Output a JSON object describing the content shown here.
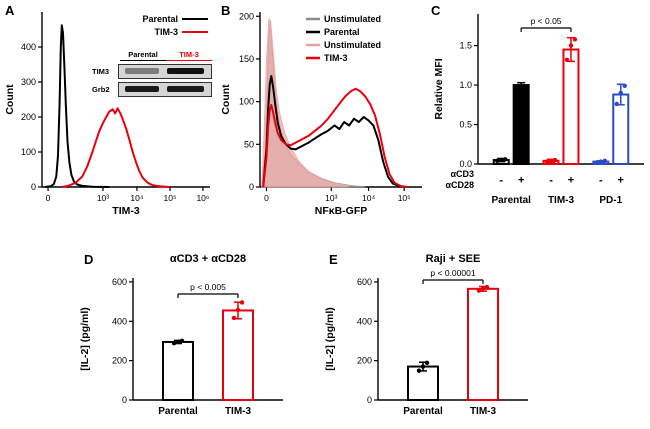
{
  "figure": {
    "colors": {
      "black": "#000000",
      "red": "#e8000d",
      "blue": "#2b4bc7",
      "gray": "#8c8c8c",
      "pink": "#f2a09e"
    }
  },
  "chart_data": [
    {
      "id": "A",
      "panel_label": "A",
      "type": "line",
      "xlabel": "TIM-3",
      "ylabel": "Count",
      "ylim": [
        0,
        500
      ],
      "yticks": [
        {
          "v": 0,
          "t": "0"
        },
        {
          "v": 100,
          "t": "100"
        },
        {
          "v": 200,
          "t": "200"
        },
        {
          "v": 300,
          "t": "300"
        },
        {
          "v": 400,
          "t": "400"
        }
      ],
      "xticks": [
        {
          "label": "0",
          "pos": 0.036
        },
        {
          "label": "10³",
          "pos": 0.363
        },
        {
          "label": "10⁴",
          "pos": 0.565
        },
        {
          "label": "10⁵",
          "pos": 0.762
        },
        {
          "label": "10⁶",
          "pos": 0.958
        }
      ],
      "legend": [
        {
          "label": "Parental",
          "color": "#000000"
        },
        {
          "label": "TIM-3",
          "color": "#e8000d"
        }
      ],
      "inset": {
        "columns": [
          {
            "label": "Parental",
            "color": "#000000"
          },
          {
            "label": "TIM-3",
            "color": "#e8000d"
          }
        ],
        "rows": [
          "TIM3",
          "Grb2"
        ]
      },
      "series": [
        {
          "name": "Parental",
          "color": "#000000",
          "fill": false,
          "points": [
            [
              0.02,
              0
            ],
            [
              0.05,
              2
            ],
            [
              0.07,
              8
            ],
            [
              0.085,
              30
            ],
            [
              0.095,
              90
            ],
            [
              0.105,
              240
            ],
            [
              0.112,
              400
            ],
            [
              0.118,
              462
            ],
            [
              0.125,
              440
            ],
            [
              0.133,
              350
            ],
            [
              0.142,
              230
            ],
            [
              0.152,
              130
            ],
            [
              0.163,
              70
            ],
            [
              0.175,
              35
            ],
            [
              0.19,
              16
            ],
            [
              0.21,
              7
            ],
            [
              0.24,
              3
            ],
            [
              0.3,
              1
            ],
            [
              0.4,
              0
            ]
          ]
        },
        {
          "name": "TIM-3",
          "color": "#e8000d",
          "fill": false,
          "points": [
            [
              0.12,
              0
            ],
            [
              0.16,
              4
            ],
            [
              0.2,
              12
            ],
            [
              0.24,
              30
            ],
            [
              0.27,
              60
            ],
            [
              0.3,
              100
            ],
            [
              0.32,
              130
            ],
            [
              0.34,
              158
            ],
            [
              0.36,
              180
            ],
            [
              0.38,
              198
            ],
            [
              0.4,
              215
            ],
            [
              0.42,
              222
            ],
            [
              0.435,
              210
            ],
            [
              0.45,
              225
            ],
            [
              0.465,
              212
            ],
            [
              0.48,
              195
            ],
            [
              0.5,
              168
            ],
            [
              0.52,
              135
            ],
            [
              0.54,
              100
            ],
            [
              0.56,
              70
            ],
            [
              0.58,
              45
            ],
            [
              0.6,
              26
            ],
            [
              0.63,
              12
            ],
            [
              0.66,
              5
            ],
            [
              0.7,
              2
            ],
            [
              0.76,
              0
            ]
          ]
        }
      ]
    },
    {
      "id": "B",
      "panel_label": "B",
      "type": "line",
      "xlabel": "NFκB-GFP",
      "ylabel": "Count",
      "ylim": [
        0,
        205
      ],
      "yticks": [
        {
          "v": 0,
          "t": "0"
        },
        {
          "v": 50,
          "t": "50"
        },
        {
          "v": 100,
          "t": "100"
        },
        {
          "v": 150,
          "t": "150"
        },
        {
          "v": 200,
          "t": "200"
        }
      ],
      "xticks": [
        {
          "label": "0",
          "pos": 0.04
        },
        {
          "label": "10³",
          "pos": 0.44
        },
        {
          "label": "10⁴",
          "pos": 0.67
        },
        {
          "label": "10⁵",
          "pos": 0.89
        }
      ],
      "legend": [
        {
          "label": "Unstimulated",
          "color": "#8c8c8c"
        },
        {
          "label": "Parental",
          "color": "#000000"
        },
        {
          "label": "Unstimulated",
          "color": "#f2a09e"
        },
        {
          "label": "TIM-3",
          "color": "#e8000d"
        }
      ],
      "series": [
        {
          "name": "Unstimulated-parental",
          "color": "#999999",
          "fill": true,
          "opacity": 0.5,
          "points": [
            [
              0.01,
              0
            ],
            [
              0.03,
              40
            ],
            [
              0.045,
              120
            ],
            [
              0.055,
              180
            ],
            [
              0.065,
              195
            ],
            [
              0.075,
              165
            ],
            [
              0.09,
              120
            ],
            [
              0.11,
              85
            ],
            [
              0.13,
              65
            ],
            [
              0.16,
              48
            ],
            [
              0.2,
              36
            ],
            [
              0.25,
              26
            ],
            [
              0.31,
              17
            ],
            [
              0.38,
              10
            ],
            [
              0.46,
              5
            ],
            [
              0.55,
              2
            ],
            [
              0.65,
              0
            ]
          ]
        },
        {
          "name": "Unstimulated-tim3",
          "color": "#f2a09e",
          "fill": true,
          "opacity": 0.65,
          "points": [
            [
              0.01,
              0
            ],
            [
              0.025,
              60
            ],
            [
              0.04,
              150
            ],
            [
              0.055,
              198
            ],
            [
              0.07,
              185
            ],
            [
              0.085,
              150
            ],
            [
              0.1,
              115
            ],
            [
              0.12,
              88
            ],
            [
              0.15,
              65
            ],
            [
              0.19,
              46
            ],
            [
              0.24,
              30
            ],
            [
              0.3,
              18
            ],
            [
              0.38,
              9
            ],
            [
              0.47,
              3
            ],
            [
              0.55,
              0
            ]
          ]
        },
        {
          "name": "Parental",
          "color": "#000000",
          "fill": false,
          "points": [
            [
              0.02,
              0
            ],
            [
              0.04,
              45
            ],
            [
              0.05,
              90
            ],
            [
              0.06,
              120
            ],
            [
              0.07,
              130
            ],
            [
              0.08,
              118
            ],
            [
              0.095,
              95
            ],
            [
              0.11,
              75
            ],
            [
              0.13,
              60
            ],
            [
              0.16,
              50
            ],
            [
              0.19,
              45
            ],
            [
              0.22,
              44
            ],
            [
              0.26,
              48
            ],
            [
              0.3,
              52
            ],
            [
              0.34,
              57
            ],
            [
              0.38,
              62
            ],
            [
              0.42,
              66
            ],
            [
              0.46,
              72
            ],
            [
              0.49,
              68
            ],
            [
              0.52,
              76
            ],
            [
              0.55,
              72
            ],
            [
              0.58,
              80
            ],
            [
              0.61,
              76
            ],
            [
              0.64,
              82
            ],
            [
              0.67,
              78
            ],
            [
              0.7,
              72
            ],
            [
              0.73,
              55
            ],
            [
              0.76,
              30
            ],
            [
              0.79,
              12
            ],
            [
              0.82,
              4
            ],
            [
              0.86,
              1
            ],
            [
              0.9,
              0
            ]
          ]
        },
        {
          "name": "TIM-3",
          "color": "#e8000d",
          "fill": false,
          "points": [
            [
              0.02,
              0
            ],
            [
              0.04,
              35
            ],
            [
              0.05,
              70
            ],
            [
              0.06,
              90
            ],
            [
              0.07,
              96
            ],
            [
              0.08,
              88
            ],
            [
              0.095,
              74
            ],
            [
              0.11,
              63
            ],
            [
              0.13,
              55
            ],
            [
              0.16,
              50
            ],
            [
              0.19,
              49
            ],
            [
              0.22,
              52
            ],
            [
              0.26,
              56
            ],
            [
              0.3,
              60
            ],
            [
              0.34,
              66
            ],
            [
              0.38,
              72
            ],
            [
              0.42,
              80
            ],
            [
              0.46,
              90
            ],
            [
              0.5,
              100
            ],
            [
              0.53,
              107
            ],
            [
              0.56,
              112
            ],
            [
              0.59,
              115
            ],
            [
              0.62,
              112
            ],
            [
              0.65,
              106
            ],
            [
              0.68,
              97
            ],
            [
              0.71,
              84
            ],
            [
              0.74,
              62
            ],
            [
              0.77,
              35
            ],
            [
              0.8,
              15
            ],
            [
              0.83,
              5
            ],
            [
              0.87,
              1
            ],
            [
              0.91,
              0
            ]
          ]
        }
      ]
    },
    {
      "id": "C",
      "panel_label": "C",
      "type": "bar",
      "ylabel": "Relative MFI",
      "ylim": [
        0,
        1.9
      ],
      "yticks": [
        {
          "v": 0,
          "t": "0.0"
        },
        {
          "v": 0.5,
          "t": "0.5"
        },
        {
          "v": 1.0,
          "t": "1.0"
        },
        {
          "v": 1.5,
          "t": "1.5"
        }
      ],
      "significance": {
        "label": "p < 0.05",
        "from": 1,
        "to": 3,
        "y": 26
      },
      "bars": [
        {
          "pos": 0.14,
          "value": 0.05,
          "err": 0.02,
          "color": "#000000",
          "solid": false,
          "points": [
            0.04,
            0.05,
            0.06
          ]
        },
        {
          "pos": 0.26,
          "value": 1.0,
          "err": 0.03,
          "color": "#000000",
          "solid": true,
          "points": []
        },
        {
          "pos": 0.44,
          "value": 0.04,
          "err": 0.02,
          "color": "#e8000d",
          "solid": false,
          "points": [
            0.03,
            0.04,
            0.05
          ]
        },
        {
          "pos": 0.56,
          "value": 1.45,
          "err": 0.15,
          "color": "#e8000d",
          "solid": false,
          "points": [
            1.32,
            1.5,
            1.58
          ]
        },
        {
          "pos": 0.74,
          "value": 0.03,
          "err": 0.01,
          "color": "#2b4bc7",
          "solid": false,
          "points": [
            0.02,
            0.03,
            0.04
          ]
        },
        {
          "pos": 0.86,
          "value": 0.88,
          "err": 0.13,
          "color": "#2b4bc7",
          "solid": false,
          "points": [
            0.76,
            0.9,
            0.99
          ]
        }
      ],
      "stim": {
        "labels": [
          "αCD3",
          "αCD28"
        ],
        "signs": [
          "-",
          "+",
          "-",
          "+",
          "-",
          "+"
        ]
      },
      "groups": [
        {
          "label": "Parental",
          "color": "#000000"
        },
        {
          "label": "TIM-3",
          "color": "#e8000d"
        },
        {
          "label": "PD-1",
          "color": "#2b4bc7"
        }
      ]
    },
    {
      "id": "D",
      "panel_label": "D",
      "type": "bar",
      "title": "αCD3 + αCD28",
      "ylabel": "[IL-2] (pg/ml)",
      "ylim": [
        0,
        620
      ],
      "yticks": [
        {
          "v": 0,
          "t": "0"
        },
        {
          "v": 200,
          "t": "200"
        },
        {
          "v": 400,
          "t": "400"
        },
        {
          "v": 600,
          "t": "600"
        }
      ],
      "significance": {
        "label": "p < 0.005",
        "from": 0,
        "to": 1,
        "y": 44
      },
      "bars": [
        {
          "pos": 0.3,
          "value": 295,
          "err": 8,
          "color": "#000000",
          "solid": false,
          "points": [
            289,
            295,
            301
          ],
          "label": "Parental"
        },
        {
          "pos": 0.7,
          "value": 455,
          "err": 42,
          "color": "#e8000d",
          "solid": false,
          "points": [
            417,
            458,
            496
          ],
          "label": "TIM-3"
        }
      ]
    },
    {
      "id": "E",
      "panel_label": "E",
      "type": "bar",
      "title": "Raji + SEE",
      "ylabel": "[IL-2] (pg/ml)",
      "ylim": [
        0,
        620
      ],
      "yticks": [
        {
          "v": 0,
          "t": "0"
        },
        {
          "v": 200,
          "t": "200"
        },
        {
          "v": 400,
          "t": "400"
        },
        {
          "v": 600,
          "t": "600"
        }
      ],
      "significance": {
        "label": "p < 0.00001",
        "from": 0,
        "to": 1,
        "y": 30
      },
      "bars": [
        {
          "pos": 0.3,
          "value": 170,
          "err": 22,
          "color": "#000000",
          "solid": false,
          "points": [
            149,
            170,
            189
          ],
          "label": "Parental"
        },
        {
          "pos": 0.7,
          "value": 565,
          "err": 12,
          "color": "#e8000d",
          "solid": false,
          "points": [
            556,
            566,
            574
          ],
          "label": "TIM-3"
        }
      ]
    }
  ]
}
